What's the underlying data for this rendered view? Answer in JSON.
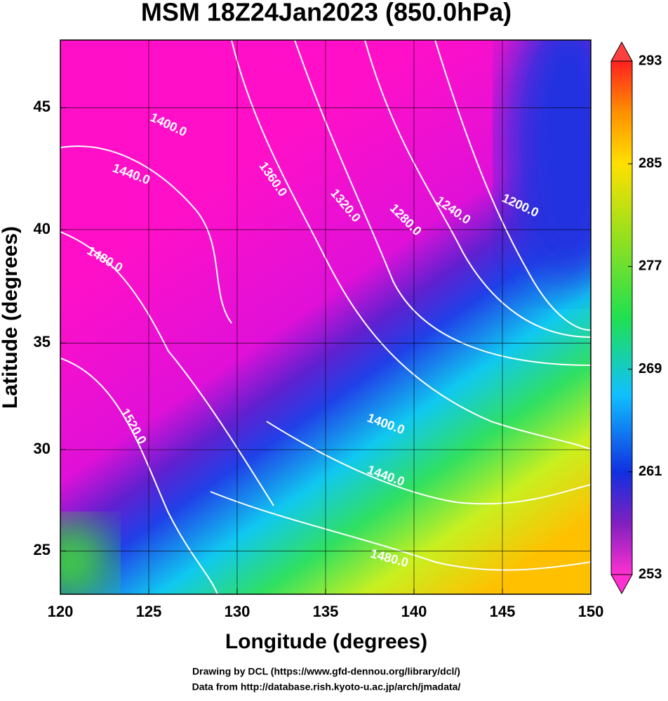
{
  "chart_data": {
    "type": "map",
    "title": "MSM 18Z24Jan2023 (850.0hPa)",
    "x_label": "Longitude (degrees)",
    "y_label": "Latitude  (degrees)",
    "xlim": [
      120,
      150
    ],
    "xticks": [
      120,
      125,
      130,
      135,
      140,
      145,
      150
    ],
    "ylim": [
      22.8,
      47.6
    ],
    "yticks": [
      25,
      30,
      35,
      40,
      45
    ],
    "grid": true,
    "colorbar": {
      "lim": [
        253,
        293
      ],
      "ticks": [
        253,
        261,
        269,
        277,
        285,
        293
      ]
    },
    "contour_labels": [
      {
        "value": 1400,
        "label": "1400.0",
        "lon": 126.1,
        "lat": 44.3
      },
      {
        "value": 1440,
        "label": "1440.0",
        "lon": 124.0,
        "lat": 42.3
      },
      {
        "value": 1480,
        "label": "1480.0",
        "lon": 122.5,
        "lat": 38.7
      },
      {
        "value": 1360,
        "label": "1360.0",
        "lon": 132.0,
        "lat": 42.1
      },
      {
        "value": 1320,
        "label": "1320.0",
        "lon": 136.1,
        "lat": 41.0
      },
      {
        "value": 1280,
        "label": "1280.0",
        "lon": 139.5,
        "lat": 40.4
      },
      {
        "value": 1240,
        "label": "1240.0",
        "lon": 142.2,
        "lat": 40.8
      },
      {
        "value": 1200,
        "label": "1200.0",
        "lon": 146.0,
        "lat": 41.0
      },
      {
        "value": 1520,
        "label": "1520.0",
        "lon": 124.1,
        "lat": 31.1
      },
      {
        "value": 1400,
        "label": "1400.0",
        "lon": 138.4,
        "lat": 31.2
      },
      {
        "value": 1440,
        "label": "1440.0",
        "lon": 138.4,
        "lat": 28.7
      },
      {
        "value": 1480,
        "label": "1480.0",
        "lon": 138.6,
        "lat": 24.6
      }
    ],
    "credits": [
      "Drawing by DCL (https://www.gfd-dennou.org/library/dcl/)",
      "Data from http://database.rish.kyoto-u.ac.jp/arch/jmadata/"
    ]
  }
}
